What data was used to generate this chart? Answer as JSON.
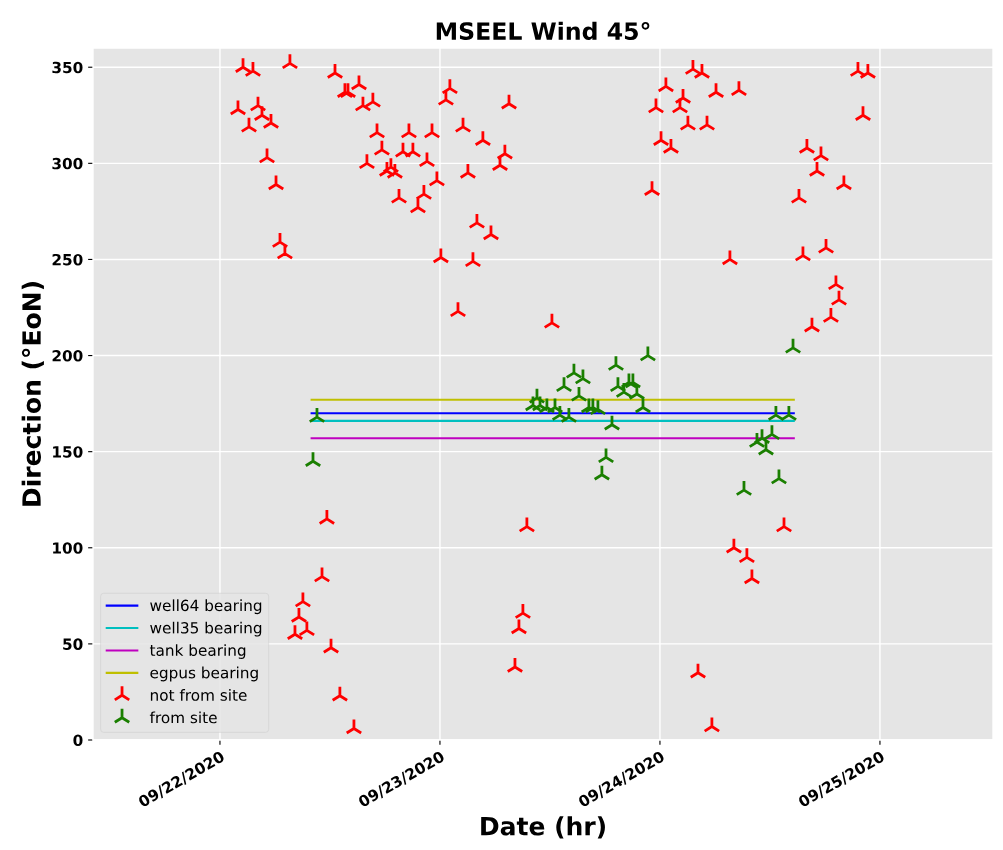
{
  "chart_data": {
    "type": "scatter",
    "title": "MSEEL Wind 45°",
    "xlabel": "Date (hr)",
    "ylabel": "Direction (°EoN)",
    "xlim": [
      "2020-09-21T10:09",
      "2020-09-25T12:20"
    ],
    "ylim": [
      0,
      360
    ],
    "xticks": [
      {
        "value": "2020-09-22",
        "label": "09/22/2020"
      },
      {
        "value": "2020-09-23",
        "label": "09/23/2020"
      },
      {
        "value": "2020-09-24",
        "label": "09/24/2020"
      },
      {
        "value": "2020-09-25",
        "label": "09/25/2020"
      }
    ],
    "yticks": [
      0,
      50,
      100,
      150,
      200,
      250,
      300,
      350
    ],
    "grid": true,
    "legend": "bottom left",
    "series": [
      {
        "name": "well64 bearing",
        "type": "line",
        "color": "#0000ff",
        "x": [
          "2020-09-22T10:00",
          "2020-09-24T14:36"
        ],
        "values": [
          170,
          170
        ]
      },
      {
        "name": "well35 bearing",
        "type": "line",
        "color": "#00bfbf",
        "x": [
          "2020-09-22T10:00",
          "2020-09-24T14:36"
        ],
        "values": [
          166,
          166
        ]
      },
      {
        "name": "tank bearing",
        "type": "line",
        "color": "#bf00bf",
        "x": [
          "2020-09-22T10:00",
          "2020-09-24T14:36"
        ],
        "values": [
          157,
          157
        ]
      },
      {
        "name": "egpus bearing",
        "type": "line",
        "color": "#bfbf00",
        "x": [
          "2020-09-22T10:00",
          "2020-09-24T14:36"
        ],
        "values": [
          177,
          177
        ]
      },
      {
        "name": "not from site",
        "marker": "cross",
        "color": "#ff0000",
        "x": [
          "2020-09-22T01:58",
          "2020-09-22T02:31",
          "2020-09-22T03:10",
          "2020-09-22T03:36",
          "2020-09-22T04:09",
          "2020-09-22T04:35",
          "2020-09-22T05:08",
          "2020-09-22T05:34",
          "2020-09-22T06:07",
          "2020-09-22T06:33",
          "2020-09-22T07:05",
          "2020-09-22T07:38",
          "2020-09-22T08:11",
          "2020-09-22T08:37",
          "2020-09-22T09:03",
          "2020-09-22T09:29",
          "2020-09-22T11:08",
          "2020-09-22T11:40",
          "2020-09-22T12:07",
          "2020-09-22T12:33",
          "2020-09-22T13:05",
          "2020-09-22T13:38",
          "2020-09-22T13:58",
          "2020-09-22T14:37",
          "2020-09-22T15:10",
          "2020-09-22T15:36",
          "2020-09-22T16:02",
          "2020-09-22T16:41",
          "2020-09-22T17:08",
          "2020-09-22T17:40",
          "2020-09-22T18:13",
          "2020-09-22T18:39",
          "2020-09-22T19:05",
          "2020-09-22T19:32",
          "2020-09-22T19:58",
          "2020-09-22T20:37",
          "2020-09-22T21:03",
          "2020-09-22T21:36",
          "2020-09-22T22:15",
          "2020-09-22T22:35",
          "2020-09-22T23:08",
          "2020-09-22T23:40",
          "2020-09-23T00:06",
          "2020-09-23T00:39",
          "2020-09-23T01:05",
          "2020-09-23T01:58",
          "2020-09-23T02:31",
          "2020-09-23T03:03",
          "2020-09-23T03:36",
          "2020-09-23T04:02",
          "2020-09-23T04:41",
          "2020-09-23T05:34",
          "2020-09-23T06:33",
          "2020-09-23T07:05",
          "2020-09-23T07:32",
          "2020-09-23T08:11",
          "2020-09-23T08:37",
          "2020-09-23T09:03",
          "2020-09-23T09:29",
          "2020-09-23T12:13",
          "2020-09-23T23:08",
          "2020-09-23T23:34",
          "2020-09-24T00:07",
          "2020-09-24T00:39",
          "2020-09-24T01:12",
          "2020-09-24T02:11",
          "2020-09-24T02:31",
          "2020-09-24T03:03",
          "2020-09-24T03:36",
          "2020-09-24T04:09",
          "2020-09-24T04:35",
          "2020-09-24T05:08",
          "2020-09-24T05:40",
          "2020-09-24T06:07",
          "2020-09-24T07:38",
          "2020-09-24T08:04",
          "2020-09-24T08:37",
          "2020-09-24T09:29",
          "2020-09-24T10:02",
          "2020-09-24T13:32",
          "2020-09-24T15:10",
          "2020-09-24T15:36",
          "2020-09-24T16:02",
          "2020-09-24T16:35",
          "2020-09-24T17:08",
          "2020-09-24T17:34",
          "2020-09-24T18:07",
          "2020-09-24T18:39",
          "2020-09-24T19:12",
          "2020-09-24T19:32",
          "2020-09-24T20:04",
          "2020-09-24T21:36",
          "2020-09-24T22:09",
          "2020-09-24T22:41"
        ],
        "values": [
          328,
          350,
          319,
          348,
          330,
          325,
          303,
          321,
          289,
          259,
          253,
          352,
          55,
          64,
          72,
          57,
          85,
          115,
          48,
          347,
          23,
          337,
          337,
          6,
          341,
          330,
          300,
          332,
          316,
          307,
          296,
          298,
          295,
          282,
          306,
          316,
          306,
          277,
          284,
          301,
          316,
          291,
          251,
          333,
          339,
          223,
          319,
          295,
          249,
          269,
          312,
          263,
          299,
          305,
          331,
          38,
          58,
          66,
          111,
          217,
          286,
          329,
          312,
          340,
          308,
          329,
          334,
          320,
          349,
          35,
          347,
          320,
          7,
          337,
          250,
          100,
          338,
          95,
          84,
          111,
          282,
          252,
          308,
          215,
          296,
          304,
          256,
          220,
          237,
          229,
          289,
          348,
          325,
          347
        ]
      },
      {
        "name": "from site",
        "marker": "cross",
        "color": "#1a7f00",
        "x": [
          "2020-09-22T10:09",
          "2020-09-22T10:35",
          "2020-09-23T10:09",
          "2020-09-23T10:35",
          "2020-09-23T10:55",
          "2020-09-23T11:40",
          "2020-09-23T12:33",
          "2020-09-23T13:05",
          "2020-09-23T13:32",
          "2020-09-23T14:04",
          "2020-09-23T14:37",
          "2020-09-23T15:10",
          "2020-09-23T15:36",
          "2020-09-23T16:15",
          "2020-09-23T16:41",
          "2020-09-23T17:14",
          "2020-09-23T17:40",
          "2020-09-23T18:07",
          "2020-09-23T18:46",
          "2020-09-23T19:12",
          "2020-09-23T19:25",
          "2020-09-23T20:04",
          "2020-09-23T20:37",
          "2020-09-23T21:03",
          "2020-09-23T21:29",
          "2020-09-23T22:09",
          "2020-09-23T22:41",
          "2020-09-24T09:10",
          "2020-09-24T10:35",
          "2020-09-24T11:08",
          "2020-09-24T11:34",
          "2020-09-24T12:13",
          "2020-09-24T12:39",
          "2020-09-24T12:59",
          "2020-09-24T14:04",
          "2020-09-24T14:31"
        ],
        "values": [
          145,
          168,
          174,
          178,
          174,
          173,
          173,
          169,
          184,
          168,
          191,
          179,
          188,
          173,
          173,
          172,
          138,
          147,
          164,
          195,
          184,
          181,
          186,
          186,
          180,
          173,
          200,
          130,
          155,
          157,
          151,
          159,
          169,
          136,
          169,
          204
        ]
      }
    ]
  }
}
